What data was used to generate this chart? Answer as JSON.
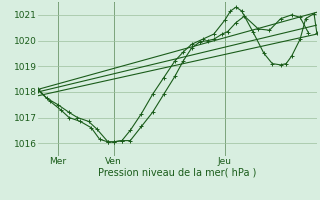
{
  "bg_color": "#d8eee0",
  "grid_color": "#9dbf9d",
  "line_color": "#1a5c1a",
  "xlabel": "Pression niveau de la mer( hPa )",
  "ylim": [
    1015.5,
    1021.5
  ],
  "yticks": [
    1016,
    1017,
    1018,
    1019,
    1020,
    1021
  ],
  "xtick_labels": [
    "Mer",
    "Ven",
    "Jeu"
  ],
  "xtick_pos": [
    0.07,
    0.27,
    0.67
  ],
  "vline_pos": [
    0.07,
    0.27,
    0.67
  ],
  "xlim": [
    0.0,
    1.0
  ],
  "series_wiggly1": [
    0.0,
    1018.1,
    0.03,
    1017.75,
    0.07,
    1017.5,
    0.11,
    1017.2,
    0.14,
    1017.0,
    0.18,
    1016.85,
    0.21,
    1016.55,
    0.25,
    1016.05,
    0.27,
    1016.05,
    0.3,
    1016.1,
    0.33,
    1016.1,
    0.37,
    1016.65,
    0.41,
    1017.2,
    0.45,
    1017.9,
    0.49,
    1018.6,
    0.52,
    1019.2,
    0.55,
    1019.7,
    0.58,
    1019.95,
    0.61,
    1020.0,
    0.63,
    1020.05,
    0.66,
    1020.25,
    0.68,
    1020.35,
    0.71,
    1020.7,
    0.74,
    1020.95,
    0.79,
    1020.45,
    0.83,
    1020.4,
    0.87,
    1020.85,
    0.91,
    1021.0,
    0.94,
    1020.9,
    0.97,
    1020.3
  ],
  "series_wiggly2": [
    0.0,
    1018.05,
    0.04,
    1017.65,
    0.08,
    1017.3,
    0.11,
    1017.0,
    0.15,
    1016.85,
    0.19,
    1016.6,
    0.22,
    1016.15,
    0.25,
    1016.05,
    0.27,
    1016.05,
    0.3,
    1016.1,
    0.33,
    1016.5,
    0.37,
    1017.15,
    0.41,
    1017.9,
    0.45,
    1018.55,
    0.49,
    1019.2,
    0.52,
    1019.55,
    0.55,
    1019.85,
    0.59,
    1020.05,
    0.63,
    1020.25,
    0.67,
    1020.8,
    0.69,
    1021.15,
    0.71,
    1021.3,
    0.73,
    1021.15,
    0.77,
    1020.35,
    0.81,
    1019.5,
    0.84,
    1019.1,
    0.87,
    1019.05,
    0.89,
    1019.1,
    0.91,
    1019.4,
    0.94,
    1020.05,
    0.96,
    1020.85,
    0.99,
    1021.05,
    1.0,
    1020.3
  ],
  "series_lines": [
    [
      0.0,
      1018.1,
      1.0,
      1021.1
    ],
    [
      0.0,
      1018.0,
      1.0,
      1020.6
    ],
    [
      0.0,
      1017.85,
      1.0,
      1020.25
    ]
  ]
}
